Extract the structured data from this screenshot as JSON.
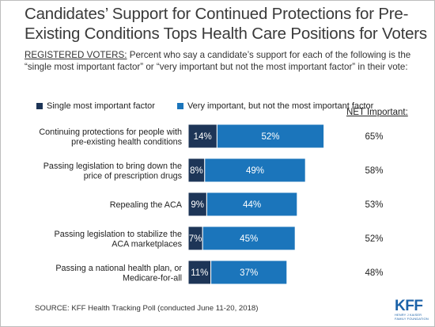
{
  "title": "Candidates’ Support for Continued Protections for Pre-Existing Conditions Tops Health Care Positions for Voters",
  "subtitle_lead": "REGISTERED VOTERS:",
  "subtitle_rest": " Percent who say a candidate’s support for each of the following is the “single most important factor” or “very important but not the most important factor” in their vote:",
  "net_header": "NET Important:",
  "source": "SOURCE: KFF Health Tracking Poll (conducted June 11-20, 2018)",
  "logo": {
    "text": "KFF",
    "org_line1": "HENRY J KAISER",
    "org_line2": "FAMILY FOUNDATION"
  },
  "colors": {
    "single": "#1d3557",
    "very": "#1b75bb",
    "bar_border": "#ffffff"
  },
  "chart_data": {
    "type": "bar",
    "orientation": "horizontal",
    "stacked": true,
    "categories": [
      [
        "Continuing protections for people with",
        "pre-existing health conditions"
      ],
      [
        "Passing legislation to bring down the",
        "price of prescription drugs"
      ],
      [
        "Repealing the ACA"
      ],
      [
        "Passing legislation to stabilize the",
        "ACA marketplaces"
      ],
      [
        "Passing a national health plan, or",
        "Medicare-for-all"
      ]
    ],
    "series": [
      {
        "name": "Single most important factor",
        "values": [
          14,
          8,
          9,
          7,
          11
        ],
        "color": "#1d3557"
      },
      {
        "name": "Very important, but not the most important factor",
        "values": [
          52,
          49,
          44,
          45,
          37
        ],
        "color": "#1b75bb"
      }
    ],
    "net_important": [
      65,
      58,
      53,
      52,
      48
    ],
    "value_suffix": "%",
    "xlim": [
      0,
      66
    ],
    "legend": "top-left",
    "grid": false
  }
}
